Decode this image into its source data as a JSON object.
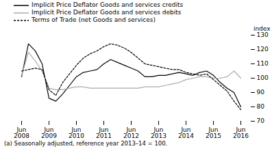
{
  "chart_data": {
    "type": "line",
    "ylabel": "index",
    "footnote": "(a) Seasonally adjusted, reference year 2013–14 = 100.",
    "categories": [
      "Jun\n2008",
      null,
      null,
      null,
      "Jun\n2009",
      null,
      null,
      null,
      "Jun\n2010",
      null,
      null,
      null,
      "Jun\n2011",
      null,
      null,
      null,
      "Jun\n2012",
      null,
      null,
      null,
      "Jun\n2013",
      null,
      null,
      null,
      "Jun\n2014",
      null,
      null,
      null,
      "Jun\n2015",
      null,
      null,
      null,
      "Jun\n2016"
    ],
    "series": [
      {
        "name": "Implicit Price Deflator Goods and services credits",
        "color": "#000000",
        "line_style": "solid",
        "values": [
          101,
          124,
          119,
          110,
          86,
          84,
          89,
          95,
          101,
          104,
          105,
          106,
          110,
          113,
          111,
          109,
          107,
          105,
          101,
          101,
          102,
          102,
          103,
          104,
          103,
          102,
          104,
          105,
          102,
          97,
          93,
          90,
          80
        ]
      },
      {
        "name": "Implicit Price Deflator Goods and services debits",
        "color": "#aaaaaa",
        "line_style": "solid",
        "values": [
          102,
          118,
          112,
          105,
          93,
          92,
          92,
          93,
          94,
          94,
          93,
          93,
          93,
          93,
          93,
          93,
          93,
          93,
          94,
          94,
          94,
          95,
          96,
          97,
          99,
          100,
          101,
          101,
          100,
          100,
          101,
          105,
          100
        ]
      },
      {
        "name": "Terms of Trade (net Goods and services)",
        "color": "#000000",
        "line_style": "dashed",
        "values": [
          105,
          106,
          107,
          106,
          92,
          88,
          97,
          103,
          109,
          114,
          117,
          119,
          122,
          124,
          123,
          121,
          118,
          114,
          110,
          109,
          108,
          107,
          106,
          106,
          104,
          103,
          102,
          103,
          99,
          95,
          91,
          84,
          78
        ]
      }
    ],
    "ylim": [
      70,
      130
    ],
    "yticks": [
      70,
      80,
      90,
      100,
      110,
      120,
      130
    ],
    "grid": false,
    "legend": "top"
  }
}
